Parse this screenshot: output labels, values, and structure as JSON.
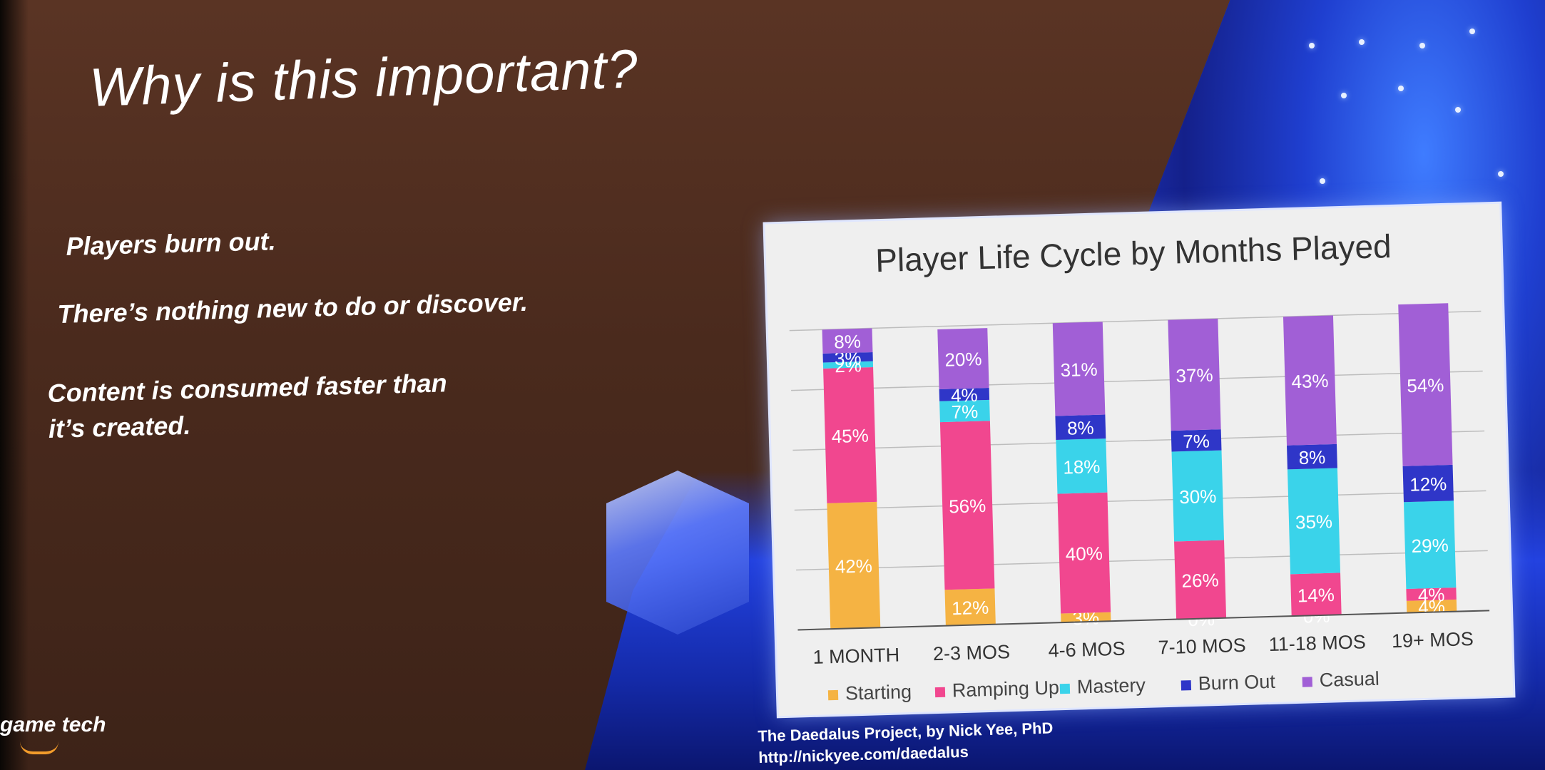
{
  "slide": {
    "title": "Why is this important?",
    "bullets": [
      "Players burn out.",
      "There’s nothing new to do or discover.",
      "Content is consumed faster than",
      "it’s created."
    ],
    "brand": "game tech",
    "credit_line1": "The Daedalus Project, by Nick Yee, PhD",
    "credit_line2": "http://nickyee.com/daedalus"
  },
  "chart_data": {
    "type": "bar",
    "stacked": true,
    "title": "Player Life Cycle by Months Played",
    "categories": [
      "1 MONTH",
      "2-3 MOS",
      "4-6 MOS",
      "7-10 MOS",
      "11-18 MOS",
      "19+ MOS"
    ],
    "series": [
      {
        "name": "Starting",
        "color": "#f5b343",
        "values": [
          42,
          12,
          3,
          0,
          0,
          4
        ]
      },
      {
        "name": "Ramping Up",
        "color": "#f1478f",
        "values": [
          45,
          56,
          40,
          26,
          14,
          4
        ]
      },
      {
        "name": "Mastery",
        "color": "#3ad3ea",
        "values": [
          2,
          7,
          18,
          30,
          35,
          29
        ]
      },
      {
        "name": "Burn Out",
        "color": "#2f36c8",
        "values": [
          3,
          4,
          8,
          7,
          8,
          12
        ]
      },
      {
        "name": "Casual",
        "color": "#a15fd6",
        "values": [
          8,
          20,
          31,
          37,
          43,
          54
        ]
      }
    ],
    "data_labels": [
      [
        "42%",
        "45%",
        "2%",
        "3%",
        "8%"
      ],
      [
        "12%",
        "56%",
        "7%",
        "4%",
        "20%"
      ],
      [
        "3%",
        "40%",
        "18%",
        "8%",
        "31%"
      ],
      [
        "0%",
        "26%",
        "30%",
        "7%",
        "37%"
      ],
      [
        "0%",
        "14%",
        "35%",
        "8%",
        "43%"
      ],
      [
        "4%",
        "4%",
        "29%",
        "12%",
        "54%"
      ]
    ],
    "ylim": [
      0,
      100
    ],
    "grid": true,
    "legend": "bottom"
  }
}
